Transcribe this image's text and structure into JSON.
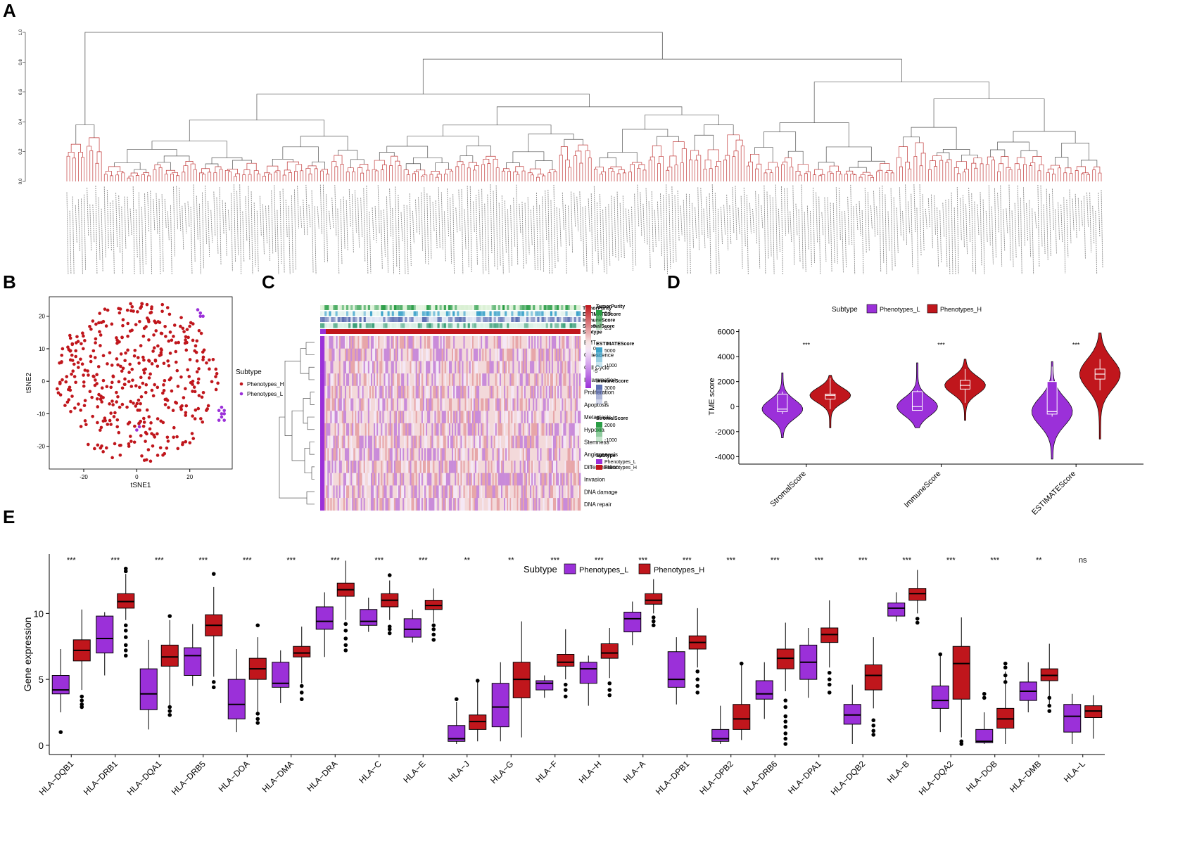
{
  "panel_labels": {
    "a": "A",
    "b": "B",
    "c": "C",
    "d": "D",
    "e": "E"
  },
  "colors": {
    "phenotypes_l": "#9b30d9",
    "phenotypes_h": "#c0161c",
    "tree_line": "#555555"
  },
  "chart_data": [
    {
      "id": "A",
      "type": "dendrogram",
      "title": "",
      "y_ticks": [
        "1.0",
        "0.8",
        "0.6",
        "0.4",
        "0.2",
        "0.0"
      ],
      "description_free": true
    },
    {
      "id": "B",
      "type": "scatter",
      "xlabel": "tSNE1",
      "ylabel": "tSNE2",
      "x_ticks": [
        "-20",
        "0",
        "20"
      ],
      "y_ticks": [
        "20",
        "10",
        "0",
        "-10",
        "-20"
      ],
      "xlim": [
        -33,
        36
      ],
      "ylim": [
        -27,
        26
      ],
      "legend_title": "Subtype",
      "legend": [
        "Phenotypes_H",
        "Phenotypes_L"
      ],
      "series": [
        {
          "name": "Phenotypes_L",
          "points": [
            [
              23,
              22
            ],
            [
              24,
              21
            ],
            [
              24,
              20
            ],
            [
              25,
              20
            ],
            [
              32,
              -8
            ],
            [
              33,
              -9
            ],
            [
              32,
              -10
            ],
            [
              33,
              -10
            ],
            [
              31,
              -9
            ],
            [
              32,
              -11
            ],
            [
              31,
              -12
            ],
            [
              33,
              -12
            ],
            [
              0,
              -15
            ],
            [
              1,
              -14
            ]
          ]
        }
      ]
    },
    {
      "id": "C",
      "type": "heatmap",
      "annotation_tracks": [
        "TumorPurity",
        "ESTIMATEScore",
        "ImmuneScore",
        "StromalScore",
        "Subtype"
      ],
      "rows": [
        "EMT",
        "Quiescence",
        "Cell Cycle",
        "Inflammation",
        "Proliferation",
        "Apoptosis",
        "Metastasis",
        "Hypoxia",
        "Stemness",
        "Angiogenesis",
        "Differentiation",
        "Invasion",
        "DNA damage",
        "DNA repair"
      ],
      "colorbar_ticks": [
        "5",
        "0",
        "-5"
      ],
      "legends": [
        {
          "title": "TumorPurity",
          "labels": [
            "0.9",
            "0.3"
          ]
        },
        {
          "title": "ESTIMATEScore",
          "labels": [
            "5000",
            "-1000"
          ]
        },
        {
          "title": "ImmuneScore",
          "labels": [
            "3000",
            "0"
          ]
        },
        {
          "title": "StromalScore",
          "labels": [
            "2000",
            "-1000"
          ]
        },
        {
          "title": "Subtype",
          "labels": [
            "Phenotypes_L",
            "Phenotypes_H"
          ]
        }
      ]
    },
    {
      "id": "D",
      "type": "violin",
      "ylabel": "TME score",
      "categories": [
        "StromalScore",
        "ImmuneScore",
        "ESTIMATEScore"
      ],
      "y_ticks": [
        "6000",
        "4000",
        "2000",
        "0",
        "-2000",
        "-4000"
      ],
      "ylim": [
        -4600,
        6200
      ],
      "legend_title": "Subtype",
      "legend": [
        "Phenotypes_L",
        "Phenotypes_H"
      ],
      "significance": [
        "***",
        "***",
        "***"
      ],
      "series": [
        {
          "name": "Phenotypes_L",
          "box": [
            [
              -600,
              -400,
              -200,
              1000,
              1200
            ],
            [
              -200,
              -300,
              0,
              1200,
              1300
            ],
            [
              -800,
              -600,
              -400,
              2000,
              3200
            ]
          ],
          "range": [
            [
              -2500,
              2700
            ],
            [
              -1700,
              3500
            ],
            [
              -4200,
              3600
            ]
          ]
        },
        {
          "name": "Phenotypes_H",
          "box": [
            [
              -200,
              600,
              900,
              1000,
              2300
            ],
            [
              300,
              1400,
              1700,
              2100,
              3000
            ],
            [
              1300,
              2200,
              2600,
              3000,
              3800
            ]
          ],
          "range": [
            [
              -1700,
              2500
            ],
            [
              -1100,
              3800
            ],
            [
              -2600,
              5900
            ]
          ]
        }
      ]
    },
    {
      "id": "E",
      "type": "boxplot",
      "ylabel": "Gene expression",
      "legend_title": "Subtype",
      "legend": [
        "Phenotypes_L",
        "Phenotypes_H"
      ],
      "y_ticks": [
        "10",
        "5",
        "0"
      ],
      "ylim": [
        -0.7,
        14.5
      ],
      "categories": [
        "HLA−DQB1",
        "HLA−DRB1",
        "HLA−DQA1",
        "HLA−DRB5",
        "HLA−DOA",
        "HLA−DMA",
        "HLA−DRA",
        "HLA−C",
        "HLA−E",
        "HLA−J",
        "HLA−G",
        "HLA−F",
        "HLA−H",
        "HLA−A",
        "HLA−DPB1",
        "HLA−DPB2",
        "HLA−DRB6",
        "HLA−DPA1",
        "HLA−DQB2",
        "HLA−B",
        "HLA−DQA2",
        "HLA−DOB",
        "HLA−DMB",
        "HLA−L"
      ],
      "significance": [
        "***",
        "***",
        "***",
        "***",
        "***",
        "***",
        "***",
        "***",
        "***",
        "**",
        "**",
        "***",
        "***",
        "***",
        "***",
        "***",
        "***",
        "***",
        "***",
        "***",
        "***",
        "***",
        "**",
        "ns"
      ],
      "series": [
        {
          "name": "Phenotypes_L",
          "stats": [
            [
              2.5,
              3.9,
              4.2,
              5.3,
              7.3
            ],
            [
              5.3,
              7.0,
              8.1,
              9.8,
              10.1
            ],
            [
              1.2,
              2.7,
              3.9,
              5.8,
              8.0
            ],
            [
              4.5,
              5.3,
              6.8,
              7.4,
              9.2
            ],
            [
              1.0,
              2.0,
              3.1,
              5.0,
              7.3
            ],
            [
              3.2,
              4.4,
              4.7,
              6.3,
              7.2
            ],
            [
              6.7,
              8.8,
              9.4,
              10.5,
              11.6
            ],
            [
              8.6,
              9.1,
              9.4,
              10.3,
              11.2
            ],
            [
              7.8,
              8.2,
              8.8,
              9.6,
              10.3
            ],
            [
              0.1,
              0.3,
              0.5,
              1.5,
              3.3
            ],
            [
              0.3,
              1.4,
              2.9,
              4.7,
              6.3
            ],
            [
              3.6,
              4.2,
              4.7,
              4.9,
              5.3
            ],
            [
              3.0,
              4.7,
              5.8,
              6.3,
              6.8
            ],
            [
              7.6,
              8.6,
              9.6,
              10.1,
              10.9
            ],
            [
              3.1,
              4.4,
              5.0,
              7.1,
              8.2
            ],
            [
              0.1,
              0.3,
              0.5,
              1.2,
              3.0
            ],
            [
              2.0,
              3.5,
              3.9,
              4.9,
              6.3
            ],
            [
              3.6,
              5.0,
              6.3,
              7.6,
              8.9
            ],
            [
              0.1,
              1.6,
              2.3,
              3.1,
              4.6
            ],
            [
              9.4,
              9.8,
              10.4,
              10.8,
              11.6
            ],
            [
              1.0,
              2.8,
              3.4,
              4.5,
              7.0
            ],
            [
              0.1,
              0.2,
              0.3,
              1.2,
              2.5
            ],
            [
              2.5,
              3.4,
              4.1,
              4.8,
              6.3
            ],
            [
              0.1,
              1.0,
              2.2,
              3.1,
              3.9
            ]
          ],
          "outliers": [
            [
              1.0
            ],
            [],
            [],
            [],
            [],
            [],
            [],
            [],
            [],
            [
              3.5
            ],
            [],
            [],
            [],
            [],
            [],
            [],
            [],
            [],
            [],
            [],
            [
              6.9
            ],
            [
              3.9,
              3.6
            ],
            [],
            []
          ]
        },
        {
          "name": "Phenotypes_H",
          "stats": [
            [
              4.2,
              6.4,
              7.2,
              8.0,
              10.3
            ],
            [
              9.5,
              10.4,
              10.9,
              11.5,
              13.0
            ],
            [
              3.0,
              6.0,
              6.7,
              7.6,
              9.5
            ],
            [
              5.2,
              8.3,
              9.1,
              9.9,
              12.0
            ],
            [
              2.5,
              5.0,
              5.8,
              6.6,
              8.2
            ],
            [
              4.7,
              6.7,
              7.0,
              7.5,
              9.0
            ],
            [
              9.5,
              11.3,
              11.8,
              12.3,
              14.0
            ],
            [
              9.5,
              10.5,
              11.0,
              11.5,
              12.5
            ],
            [
              9.3,
              10.3,
              10.6,
              11.0,
              11.9
            ],
            [
              0.3,
              1.2,
              1.8,
              2.3,
              4.8
            ],
            [
              0.6,
              3.6,
              5.0,
              6.3,
              9.4
            ],
            [
              5.0,
              6.0,
              6.3,
              6.9,
              8.8
            ],
            [
              5.1,
              6.6,
              7.0,
              7.7,
              8.9
            ],
            [
              10.0,
              10.7,
              11.0,
              11.5,
              12.6
            ],
            [
              5.9,
              7.3,
              7.8,
              8.3,
              10.4
            ],
            [
              0.4,
              1.2,
              2.0,
              3.1,
              6.2
            ],
            [
              4.1,
              5.8,
              6.6,
              7.3,
              9.3
            ],
            [
              5.9,
              7.8,
              8.4,
              8.9,
              11.0
            ],
            [
              2.8,
              4.2,
              5.3,
              6.1,
              8.2
            ],
            [
              10.0,
              11.0,
              11.5,
              11.9,
              13.3
            ],
            [
              0.6,
              3.5,
              6.2,
              7.5,
              9.7
            ],
            [
              0.1,
              1.3,
              2.0,
              2.8,
              5.6
            ],
            [
              3.0,
              4.9,
              5.3,
              5.8,
              7.7
            ],
            [
              0.5,
              2.1,
              2.6,
              3.0,
              3.8
            ]
          ],
          "outliers": [
            [
              3.7,
              3.4,
              3.1,
              2.9
            ],
            [
              9.1,
              8.7,
              8.2,
              7.6,
              7.2,
              6.8,
              13.4,
              13.2
            ],
            [
              2.9,
              2.6,
              2.3,
              9.8
            ],
            [
              4.8,
              4.4,
              13.0
            ],
            [
              2.4,
              2.0,
              1.7,
              9.1
            ],
            [
              4.5,
              4.0,
              3.5
            ],
            [
              9.2,
              8.7,
              8.1,
              7.6,
              7.2
            ],
            [
              9.0,
              8.8,
              8.5,
              12.9
            ],
            [
              9.1,
              8.8,
              8.4,
              8.0
            ],
            [
              4.9
            ],
            [],
            [
              4.6,
              4.2,
              3.7
            ],
            [
              4.7,
              4.2,
              3.8
            ],
            [
              9.7,
              9.4,
              9.1
            ],
            [
              5.6,
              5.0,
              4.5,
              4.0
            ],
            [
              6.2
            ],
            [
              3.4,
              2.9,
              2.2,
              1.8,
              1.4,
              0.9,
              0.5,
              0.1
            ],
            [
              5.5,
              5.0,
              4.6,
              4.0
            ],
            [
              1.9,
              1.5,
              1.1,
              0.8
            ],
            [
              9.6,
              9.3
            ],
            [
              0.3,
              0.1
            ],
            [
              5.9,
              5.3,
              4.8,
              6.2
            ],
            [
              3.6,
              3.0,
              2.6
            ],
            []
          ]
        }
      ]
    }
  ]
}
